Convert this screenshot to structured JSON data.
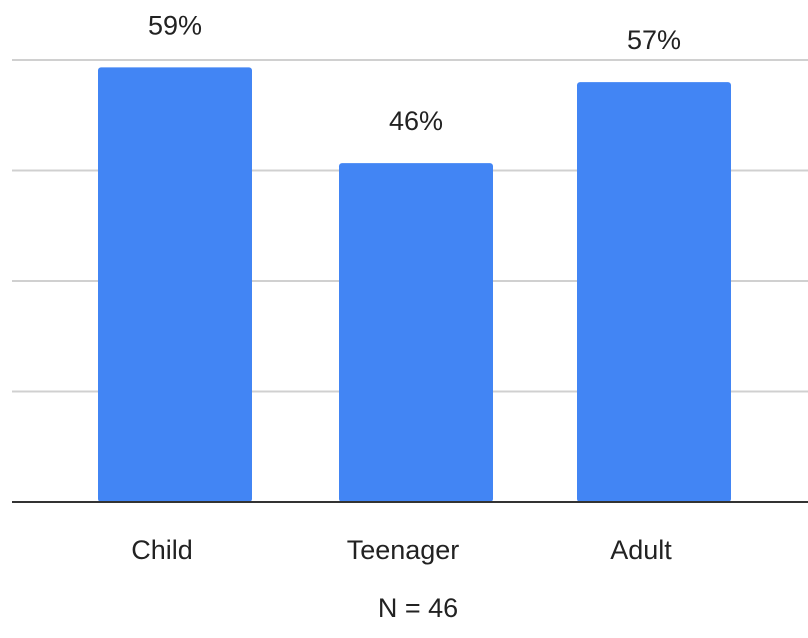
{
  "chart_data": {
    "type": "bar",
    "categories": [
      "Child",
      "Teenager",
      "Adult"
    ],
    "values": [
      59,
      46,
      57
    ],
    "value_labels": [
      "59%",
      "46%",
      "57%"
    ],
    "title": "",
    "xlabel": "",
    "ylabel": "",
    "ylim": [
      0,
      60
    ],
    "grid": true,
    "legend": "none",
    "bar_color": "#4285f4",
    "note": "N = 46"
  }
}
